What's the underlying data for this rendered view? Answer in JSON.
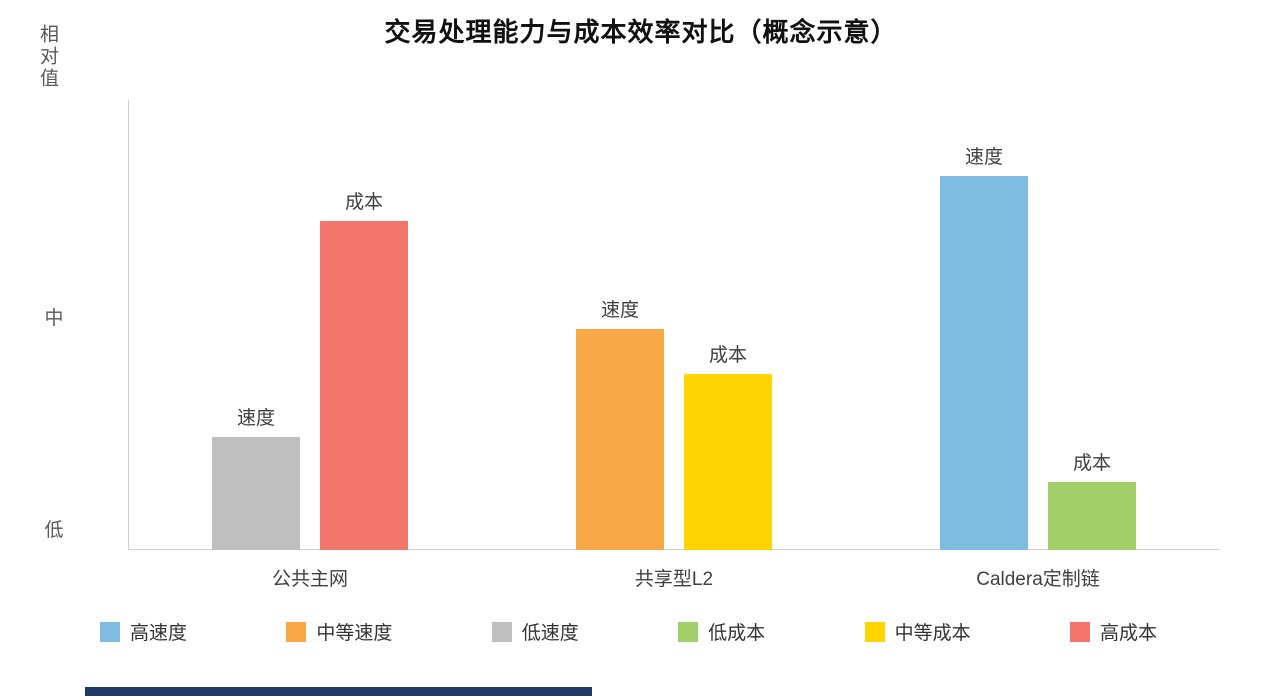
{
  "chart_data": {
    "type": "bar",
    "title": "交易处理能力与成本效率对比（概念示意）",
    "categories": [
      "公共主网",
      "共享型L2",
      "Caldera定制链"
    ],
    "series": [
      {
        "name": "速度",
        "slug": "speed",
        "values": [
          0.25,
          0.49,
          0.83
        ],
        "colors": [
          "#BFBFBF",
          "#F9A848",
          "#7EBCE0"
        ],
        "semantics": [
          "低速度",
          "中等速度",
          "高速度"
        ]
      },
      {
        "name": "成本",
        "slug": "cost",
        "values": [
          0.73,
          0.39,
          0.15
        ],
        "colors": [
          "#F4756C",
          "#FFD500",
          "#A3D06A"
        ],
        "semantics": [
          "高成本",
          "中等成本",
          "低成本"
        ]
      }
    ],
    "ylabel": "相对值",
    "yticks": [
      {
        "label": "低",
        "value": 0.05
      },
      {
        "label": "中",
        "value": 0.52
      }
    ],
    "ylim": [
      0,
      1
    ],
    "grid": false,
    "legend_position": "bottom"
  },
  "legend": {
    "items": [
      {
        "label": "高速度",
        "color": "#7EBCE0"
      },
      {
        "label": "中等速度",
        "color": "#F9A848"
      },
      {
        "label": "低速度",
        "color": "#BFBFBF"
      },
      {
        "label": "低成本",
        "color": "#A3D06A"
      },
      {
        "label": "中等成本",
        "color": "#FFD500"
      },
      {
        "label": "高成本",
        "color": "#F4756C"
      }
    ]
  },
  "footer": {
    "accent_color": "#1F3864"
  }
}
